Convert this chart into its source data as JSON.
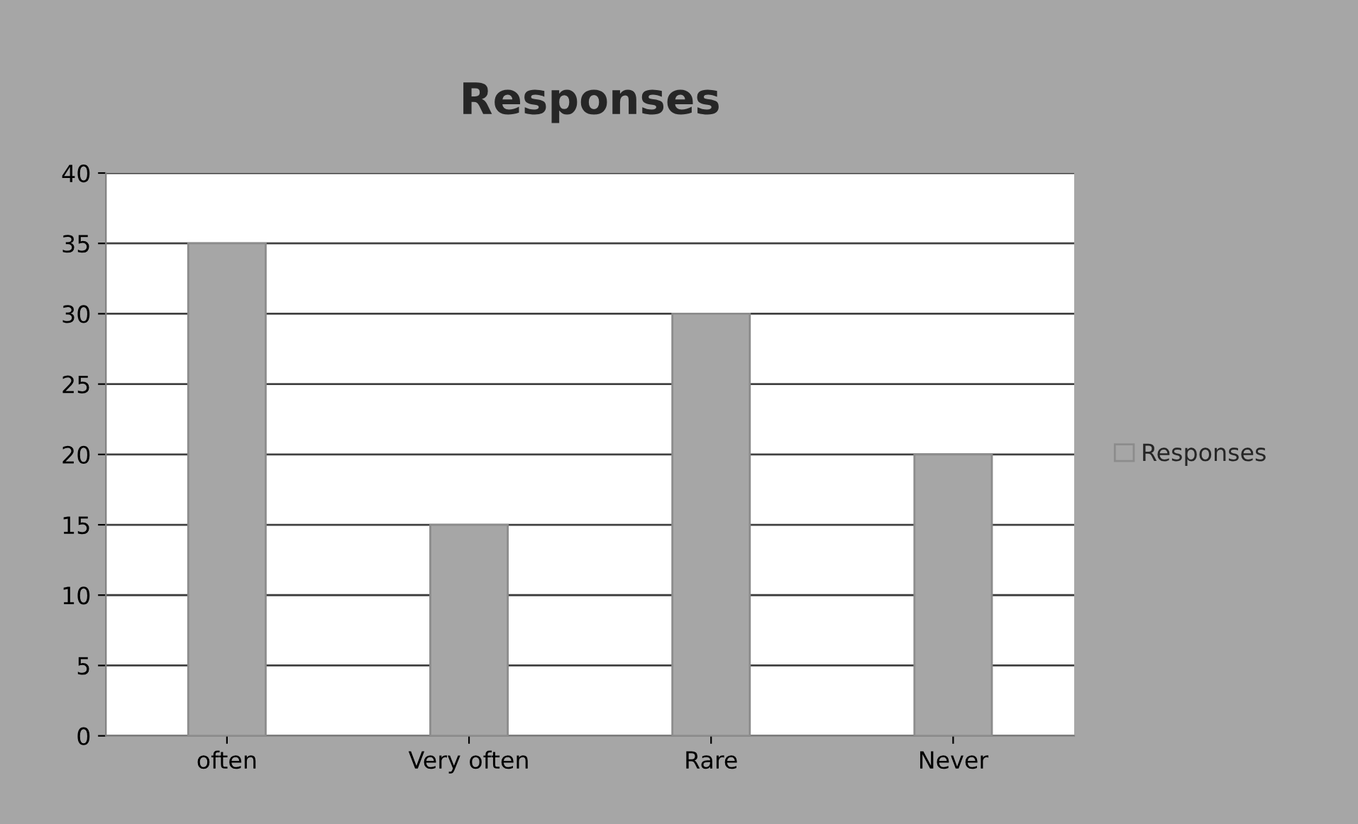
{
  "chart_data": {
    "type": "bar",
    "title": "Responses",
    "categories": [
      "often",
      "Very often",
      "Rare",
      "Never"
    ],
    "series": [
      {
        "name": "Responses",
        "color": "#a6a6a6",
        "values": [
          35,
          15,
          30,
          20
        ]
      }
    ],
    "ylim": [
      0,
      40
    ],
    "yticks": [
      0,
      5,
      10,
      15,
      20,
      25,
      30,
      35,
      40
    ],
    "grid": "y",
    "legend": "right"
  }
}
